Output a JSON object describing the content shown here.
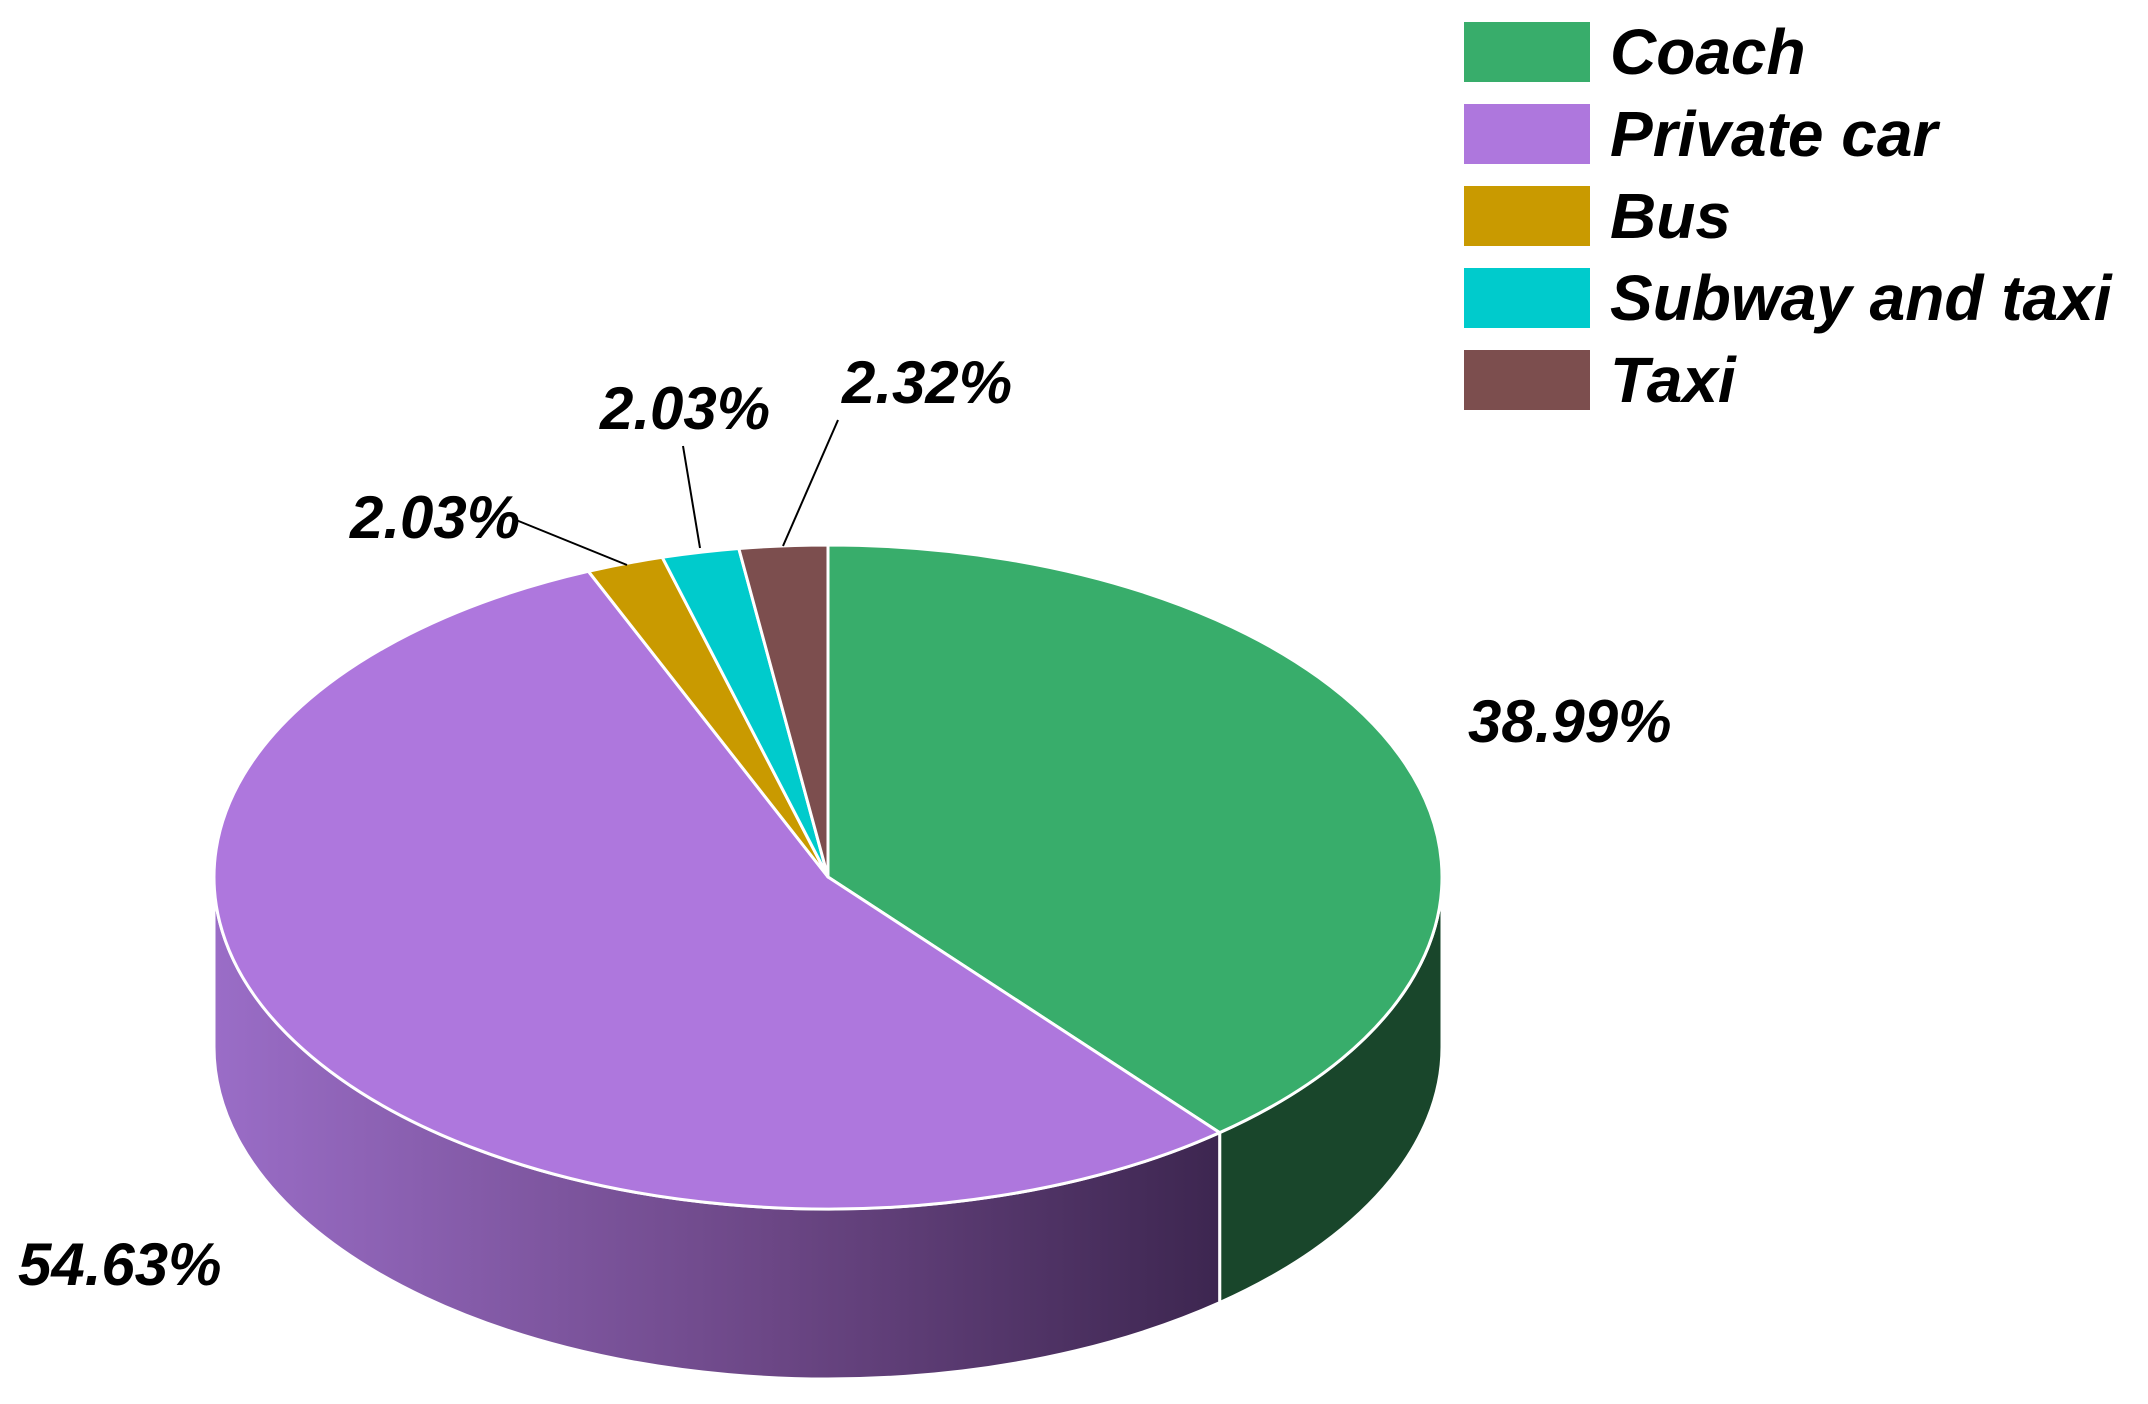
{
  "chart_data": {
    "type": "pie",
    "variant": "3d",
    "legend_position": "top-right",
    "slices": [
      {
        "name": "Coach",
        "value": 38.99,
        "label": "38.99%",
        "color": "#38ad6b",
        "side_color": "#19462b"
      },
      {
        "name": "Private car",
        "value": 54.63,
        "label": "54.63%",
        "color": "#ae77dd",
        "side_color": "#8f63b4"
      },
      {
        "name": "Bus",
        "value": 2.03,
        "label": "2.03%",
        "color": "#c99a00",
        "side_color": "#7a5d00"
      },
      {
        "name": "Subway and taxi",
        "value": 2.03,
        "label": "2.03%",
        "color": "#00cbcc",
        "side_color": "#007a7b"
      },
      {
        "name": "Taxi",
        "value": 2.32,
        "label": "2.32%",
        "color": "#7c4e4e",
        "side_color": "#4a2e2e"
      }
    ],
    "legend": [
      "Coach",
      "Private car",
      "Bus",
      "Subway and taxi",
      "Taxi"
    ]
  }
}
